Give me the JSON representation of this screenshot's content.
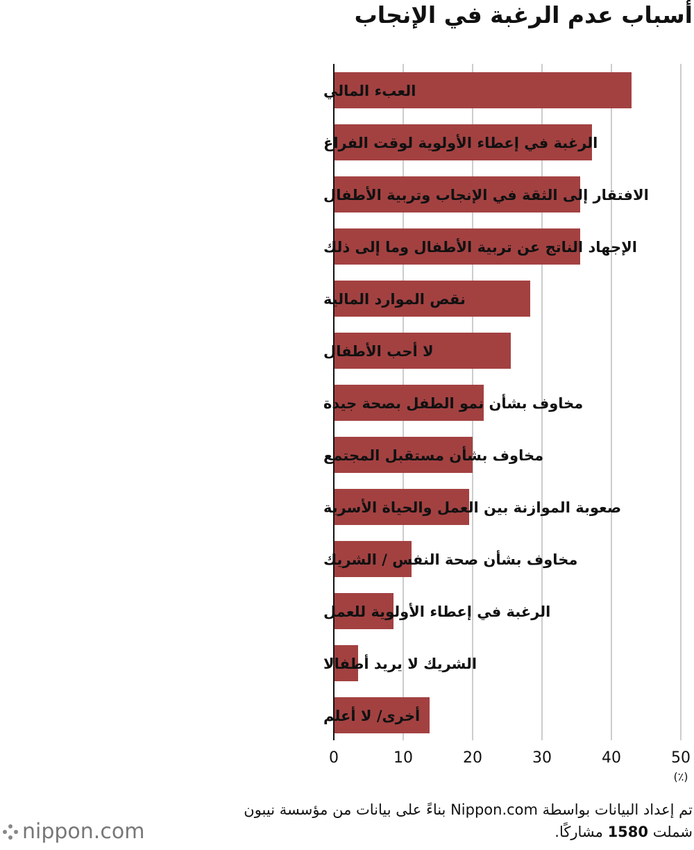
{
  "title": "أسباب عدم الرغبة في الإنجاب",
  "footer": {
    "line1": "تم إعداد البيانات بواسطة Nippon.com بناءً على بيانات من مؤسسة نيبون",
    "line2_prefix": "شملت ",
    "line2_number": "1580",
    "line2_suffix": " مشاركًا."
  },
  "logo": {
    "text": "nippon.com"
  },
  "colors": {
    "bar": "#a34141",
    "grid": "#cccccc",
    "axis": "#111111"
  },
  "chart_data": {
    "type": "bar",
    "orientation": "horizontal",
    "categories": [
      "العبء المالي",
      "الرغبة في إعطاء الأولوية لوقت الفراغ",
      "الافتقار إلى الثقة في الإنجاب وتربية الأطفال",
      "الإجهاد الناتج عن تربية الأطفال وما إلى ذلك",
      "نقص الموارد المالية",
      "لا أحب الأطفال",
      "مخاوف بشأن نمو الطفل بصحة جيدة",
      "مخاوف بشأن مستقبل المجتمع",
      "صعوبة الموازنة بين العمل والحياة الأسرية",
      "مخاوف بشأن صحة النفس / الشريك",
      "الرغبة في إعطاء الأولوية للعمل",
      "الشريك لا يريد أطفالا",
      "أخرى/ لا أعلم"
    ],
    "values": [
      42.9,
      37.2,
      35.5,
      35.5,
      28.3,
      25.5,
      21.6,
      20.0,
      19.5,
      11.2,
      8.6,
      3.5,
      13.8
    ],
    "xlim": [
      0,
      50
    ],
    "ticks": [
      0,
      10,
      20,
      30,
      40,
      50
    ],
    "unit_label": "(٪)",
    "grid": true
  }
}
